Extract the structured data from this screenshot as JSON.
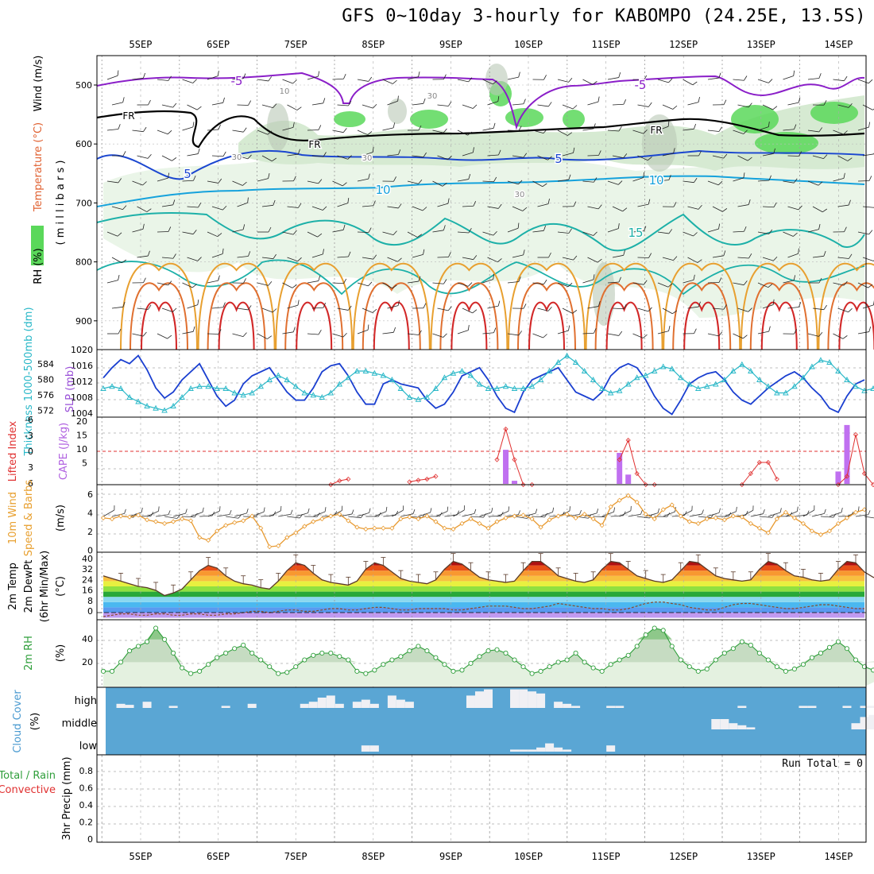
{
  "title": "GFS 0~10day 3-hourly for KABOMPO (24.25E, 13.5S)",
  "x_day_labels": [
    "5SEP",
    "6SEP",
    "7SEP",
    "8SEP",
    "9SEP",
    "10SEP",
    "11SEP",
    "12SEP",
    "13SEP",
    "14SEP"
  ],
  "colors": {
    "temp_warm": "#d22828",
    "temp_cool": "#1ab0a0",
    "freezing": "#000000",
    "rh_green": "#5ad85a",
    "slp": "#1a3fd0",
    "thickness": "#2ab8c8",
    "cape": "#c070f0",
    "lifted": "#e03030",
    "wind": "#e89a30",
    "rh2m": "#2e9e3a",
    "cloud": "#5aa6d4",
    "cloud_bar": "#f0f0f4"
  },
  "panels": {
    "upper_air": {
      "ylabel_parts": [
        "RH (%)",
        "Temperature (°C)",
        "Wind (m/s)"
      ],
      "ylabel_unit": "( m i l l i b a r s )",
      "y_ticks": [
        "500",
        "600",
        "700",
        "800",
        "900"
      ],
      "contour_labels": [
        "-5",
        "-5",
        "5",
        "5",
        "10",
        "10",
        "15",
        "FR",
        "FR",
        "FR",
        "10",
        "30",
        "30",
        "30",
        "30"
      ]
    },
    "slp": {
      "ylabel": "SLP (mb)",
      "ylabel2": "Thickness 1000-500mb (dm)",
      "y_ticks_left": [
        "584",
        "580",
        "576",
        "572"
      ],
      "y_ticks_right": [
        "1020",
        "1016",
        "1012",
        "1008",
        "1004"
      ]
    },
    "cape": {
      "ylabel": "Lifted Index",
      "ylabel2": "CAPE (J/kg)",
      "y_ticks_left": [
        "-6",
        "-3",
        "0",
        "3",
        "6"
      ],
      "y_ticks_right": [
        "20",
        "15",
        "10",
        "5"
      ]
    },
    "wind10": {
      "ylabel": "10m Wind Speed & Barbs",
      "unit": "(m/s)",
      "y_ticks": [
        "6",
        "4",
        "2",
        "0"
      ]
    },
    "temp2m": {
      "ylabel": "2m Temp",
      "ylabel2": "2m DewPt",
      "ylabel3": "(6hr Min/Max)",
      "unit": "(°C)",
      "y_ticks": [
        "40",
        "32",
        "24",
        "16",
        "8",
        "0"
      ]
    },
    "rh2m": {
      "ylabel": "2m RH",
      "unit": "(%)",
      "y_ticks": [
        "40",
        "20"
      ]
    },
    "cloud": {
      "ylabel": "Cloud Cover",
      "unit": "(%)",
      "levels": [
        "high",
        "middle",
        "low"
      ]
    },
    "precip": {
      "ylabel": "Total / Rain",
      "ylabel2": "Convective",
      "ylabel3": "3hr Precip (mm)",
      "y_ticks": [
        "0.8",
        "0.6",
        "0.4",
        "0.2",
        "0"
      ],
      "run_total": "Run Total = 0"
    }
  },
  "chart_data": {
    "type": "meteogram",
    "x_days": [
      "5SEP",
      "6SEP",
      "7SEP",
      "8SEP",
      "9SEP",
      "10SEP",
      "11SEP",
      "12SEP",
      "13SEP",
      "14SEP"
    ],
    "slp_mb": [
      1013.5,
      1016,
      1018,
      1017,
      1019,
      1015.5,
      1011,
      1008.5,
      1010,
      1013,
      1015,
      1017,
      1013,
      1009,
      1006.5,
      1008,
      1012,
      1014,
      1015,
      1016,
      1013,
      1010,
      1008,
      1008,
      1011,
      1015,
      1016.5,
      1017,
      1014,
      1010,
      1007,
      1007,
      1012,
      1013,
      1012,
      1011.5,
      1011,
      1008,
      1006,
      1007,
      1010,
      1014,
      1015,
      1016,
      1013,
      1009,
      1006,
      1005,
      1010,
      1013,
      1014,
      1015,
      1016,
      1013,
      1010,
      1009,
      1008,
      1010,
      1014,
      1016,
      1017,
      1016,
      1013,
      1009,
      1006,
      1004.5,
      1008,
      1012,
      1013.5,
      1014.5,
      1015,
      1013,
      1010,
      1008,
      1007,
      1009,
      1011,
      1012.5,
      1014,
      1015,
      1013.5,
      1011,
      1009,
      1006,
      1005,
      1009,
      1012,
      1013
    ],
    "thickness_dm": [
      578,
      578.5,
      578,
      576,
      575,
      574,
      573.5,
      573,
      574,
      576,
      578,
      578.5,
      578.5,
      578,
      578,
      577,
      576.5,
      577,
      578.5,
      580,
      581,
      580,
      578.5,
      577,
      576.5,
      576,
      577,
      579,
      580.5,
      582,
      582,
      581.5,
      581,
      580,
      578,
      576,
      575.5,
      576,
      578,
      580.5,
      581.5,
      582,
      581,
      579,
      578,
      578,
      578.5,
      578,
      578,
      578.5,
      580,
      582,
      584,
      585.5,
      584,
      582,
      580,
      578,
      577,
      577.5,
      579,
      580.5,
      581,
      582,
      583,
      582.5,
      580.5,
      579,
      578,
      578.5,
      579,
      580,
      582,
      583.5,
      582,
      580,
      578.5,
      577,
      577,
      578.5,
      580.5,
      583,
      584.5,
      584,
      582,
      580,
      578.5,
      577.5,
      578,
      580
    ],
    "cape_jkg": [
      0,
      0,
      0,
      0,
      0,
      0,
      0,
      0,
      0,
      0,
      0,
      0,
      0,
      0,
      0,
      0,
      0,
      0,
      0,
      0,
      0,
      0,
      0,
      0,
      0,
      0,
      0,
      0,
      0,
      0,
      0,
      0,
      0,
      0,
      0,
      0,
      0,
      0,
      0,
      0,
      0,
      0,
      0,
      0,
      0,
      0,
      11,
      1,
      0,
      0,
      0,
      0,
      0,
      0,
      0,
      0,
      0,
      0,
      0,
      10,
      3,
      0,
      0,
      0,
      0,
      0,
      0,
      0,
      0,
      0,
      0,
      0,
      0,
      0,
      0,
      0,
      0,
      0,
      0,
      0,
      0,
      0,
      0,
      0,
      4,
      19,
      0,
      0,
      0,
      0
    ],
    "lifted_index": [
      null,
      null,
      null,
      null,
      null,
      null,
      null,
      null,
      null,
      null,
      null,
      null,
      null,
      null,
      null,
      null,
      null,
      null,
      null,
      null,
      null,
      null,
      null,
      null,
      null,
      null,
      6,
      5.3,
      5,
      null,
      null,
      null,
      null,
      null,
      null,
      5.5,
      5.2,
      5,
      4.5,
      null,
      null,
      null,
      null,
      null,
      null,
      1.5,
      -4,
      1.5,
      6,
      6,
      null,
      null,
      null,
      null,
      null,
      null,
      null,
      null,
      null,
      1.5,
      -2,
      4,
      6,
      6,
      null,
      null,
      null,
      null,
      null,
      null,
      null,
      null,
      null,
      6,
      4,
      2,
      2,
      5,
      null,
      null,
      null,
      null,
      null,
      null,
      6,
      4.5,
      -3,
      4,
      6
    ],
    "wind10_ms": [
      3.6,
      3.5,
      3.8,
      3.7,
      3.9,
      3.4,
      3.2,
      3.0,
      3.2,
      3.5,
      3.3,
      1.5,
      1.2,
      2.2,
      2.8,
      3.1,
      3.3,
      3.8,
      2.5,
      0.5,
      0.6,
      1.5,
      2.0,
      2.7,
      3.2,
      3.5,
      3.8,
      4.0,
      3.3,
      2.6,
      2.4,
      2.5,
      2.5,
      2.5,
      3.5,
      3.7,
      3.5,
      3.8,
      3.2,
      2.5,
      2.4,
      3.0,
      3.5,
      3.0,
      2.5,
      3.2,
      3.6,
      3.8,
      3.9,
      3.5,
      2.6,
      3.4,
      3.8,
      4.0,
      3.6,
      4.0,
      3.5,
      2.8,
      4.8,
      5.5,
      6.0,
      5.3,
      4.0,
      3.5,
      4.5,
      5.0,
      3.8,
      3.2,
      3.0,
      3.5,
      3.6,
      3.4,
      3.8,
      3.7,
      3.0,
      2.5,
      2.0,
      3.5,
      4.2,
      3.6,
      3.0,
      2.2,
      1.8,
      2.2,
      3.0,
      3.6,
      4.2,
      4.5
    ],
    "temp2m_c": [
      28,
      26,
      24,
      22,
      20,
      19,
      17,
      13,
      15,
      18,
      25,
      32,
      36,
      34,
      28,
      24,
      22,
      21,
      19,
      18,
      24,
      32,
      38,
      36,
      30,
      25,
      23,
      22,
      21,
      24,
      33,
      38,
      36,
      31,
      26,
      24,
      23,
      22,
      25,
      33,
      39,
      37,
      32,
      27,
      25,
      24,
      23,
      24,
      32,
      39,
      39,
      34,
      28,
      26,
      24,
      23,
      25,
      33,
      39,
      38,
      33,
      28,
      26,
      24,
      23,
      25,
      32,
      39,
      38,
      33,
      28,
      26,
      25,
      24,
      25,
      33,
      39,
      37,
      32,
      28,
      27,
      25,
      24,
      25,
      33,
      39,
      38,
      31,
      27,
      25,
      24,
      26
    ],
    "dewpt2m_c": [
      -3,
      -2,
      -1,
      -1,
      -2,
      -2,
      -1,
      -1,
      -2,
      -2,
      -1,
      -1,
      -2,
      -2,
      -1,
      -1,
      0,
      1,
      1,
      0,
      1,
      2,
      2,
      1,
      1,
      2,
      3,
      3,
      2,
      2,
      3,
      4,
      4,
      3,
      2,
      2,
      3,
      3,
      3,
      3,
      2,
      2,
      3,
      4,
      5,
      5,
      5,
      4,
      3,
      3,
      4,
      5,
      7,
      6,
      5,
      4,
      3,
      3,
      2,
      2,
      3,
      5,
      7,
      8,
      8,
      7,
      6,
      4,
      3,
      2,
      2,
      4,
      6,
      7,
      7,
      6,
      5,
      4,
      3,
      3,
      4,
      5,
      6,
      6,
      5,
      4,
      3,
      3
    ],
    "rh2m_pct": [
      12,
      12,
      20,
      30,
      34,
      38,
      50,
      40,
      28,
      15,
      10,
      12,
      18,
      24,
      28,
      32,
      35,
      28,
      22,
      16,
      10,
      11,
      16,
      22,
      26,
      28,
      28,
      25,
      22,
      12,
      10,
      13,
      18,
      22,
      25,
      30,
      34,
      30,
      24,
      18,
      12,
      13,
      19,
      25,
      30,
      31,
      28,
      22,
      16,
      10,
      12,
      16,
      20,
      22,
      28,
      20,
      15,
      12,
      18,
      22,
      26,
      34,
      44,
      50,
      48,
      34,
      22,
      16,
      12,
      14,
      22,
      28,
      32,
      38,
      35,
      28,
      22,
      16,
      12,
      14,
      18,
      24,
      28,
      33,
      38,
      32,
      22,
      16,
      13,
      20,
      25,
      28,
      32,
      30,
      24
    ],
    "cloud": {
      "high_pct": [
        0,
        0,
        20,
        15,
        0,
        30,
        0,
        0,
        10,
        0,
        0,
        0,
        0,
        0,
        10,
        0,
        0,
        20,
        0,
        0,
        0,
        0,
        0,
        20,
        30,
        50,
        60,
        20,
        0,
        30,
        40,
        20,
        0,
        60,
        40,
        30,
        0,
        0,
        0,
        0,
        0,
        0,
        60,
        80,
        90,
        0,
        0,
        90,
        90,
        80,
        70,
        0,
        30,
        20,
        10,
        0,
        0,
        0,
        10,
        10,
        0,
        0,
        0,
        0,
        0,
        0,
        0,
        0,
        0,
        0,
        0,
        0,
        0,
        10,
        0,
        0,
        0,
        0,
        0,
        0,
        10,
        10,
        0,
        0,
        0,
        10,
        0,
        10,
        10,
        0
      ],
      "middle_pct": [
        0,
        0,
        0,
        0,
        0,
        0,
        0,
        0,
        0,
        0,
        0,
        0,
        0,
        0,
        0,
        0,
        0,
        0,
        0,
        0,
        0,
        0,
        0,
        0,
        0,
        0,
        0,
        0,
        0,
        0,
        0,
        0,
        0,
        0,
        0,
        0,
        0,
        0,
        0,
        0,
        0,
        0,
        0,
        0,
        0,
        0,
        0,
        0,
        0,
        0,
        0,
        0,
        0,
        0,
        0,
        0,
        0,
        0,
        0,
        0,
        0,
        0,
        0,
        0,
        0,
        0,
        0,
        0,
        0,
        0,
        50,
        50,
        30,
        20,
        10,
        0,
        0,
        0,
        0,
        0,
        0,
        0,
        0,
        0,
        0,
        0,
        30,
        60,
        70,
        60,
        40
      ],
      "low_pct": [
        0,
        0,
        0,
        0,
        0,
        0,
        0,
        0,
        0,
        0,
        0,
        0,
        0,
        0,
        0,
        0,
        0,
        0,
        0,
        0,
        0,
        0,
        0,
        0,
        0,
        0,
        0,
        0,
        0,
        0,
        30,
        30,
        0,
        0,
        0,
        0,
        0,
        0,
        0,
        0,
        0,
        0,
        0,
        0,
        0,
        0,
        0,
        10,
        10,
        10,
        20,
        40,
        20,
        10,
        0,
        0,
        0,
        0,
        30,
        0,
        0,
        0,
        0,
        0,
        0,
        0,
        0,
        0,
        0,
        0,
        0,
        0,
        0,
        0,
        0,
        0,
        0,
        0,
        0,
        0,
        0,
        0,
        0,
        0,
        0,
        0,
        0,
        0,
        0,
        0,
        0
      ]
    },
    "precip_mm": 0
  }
}
